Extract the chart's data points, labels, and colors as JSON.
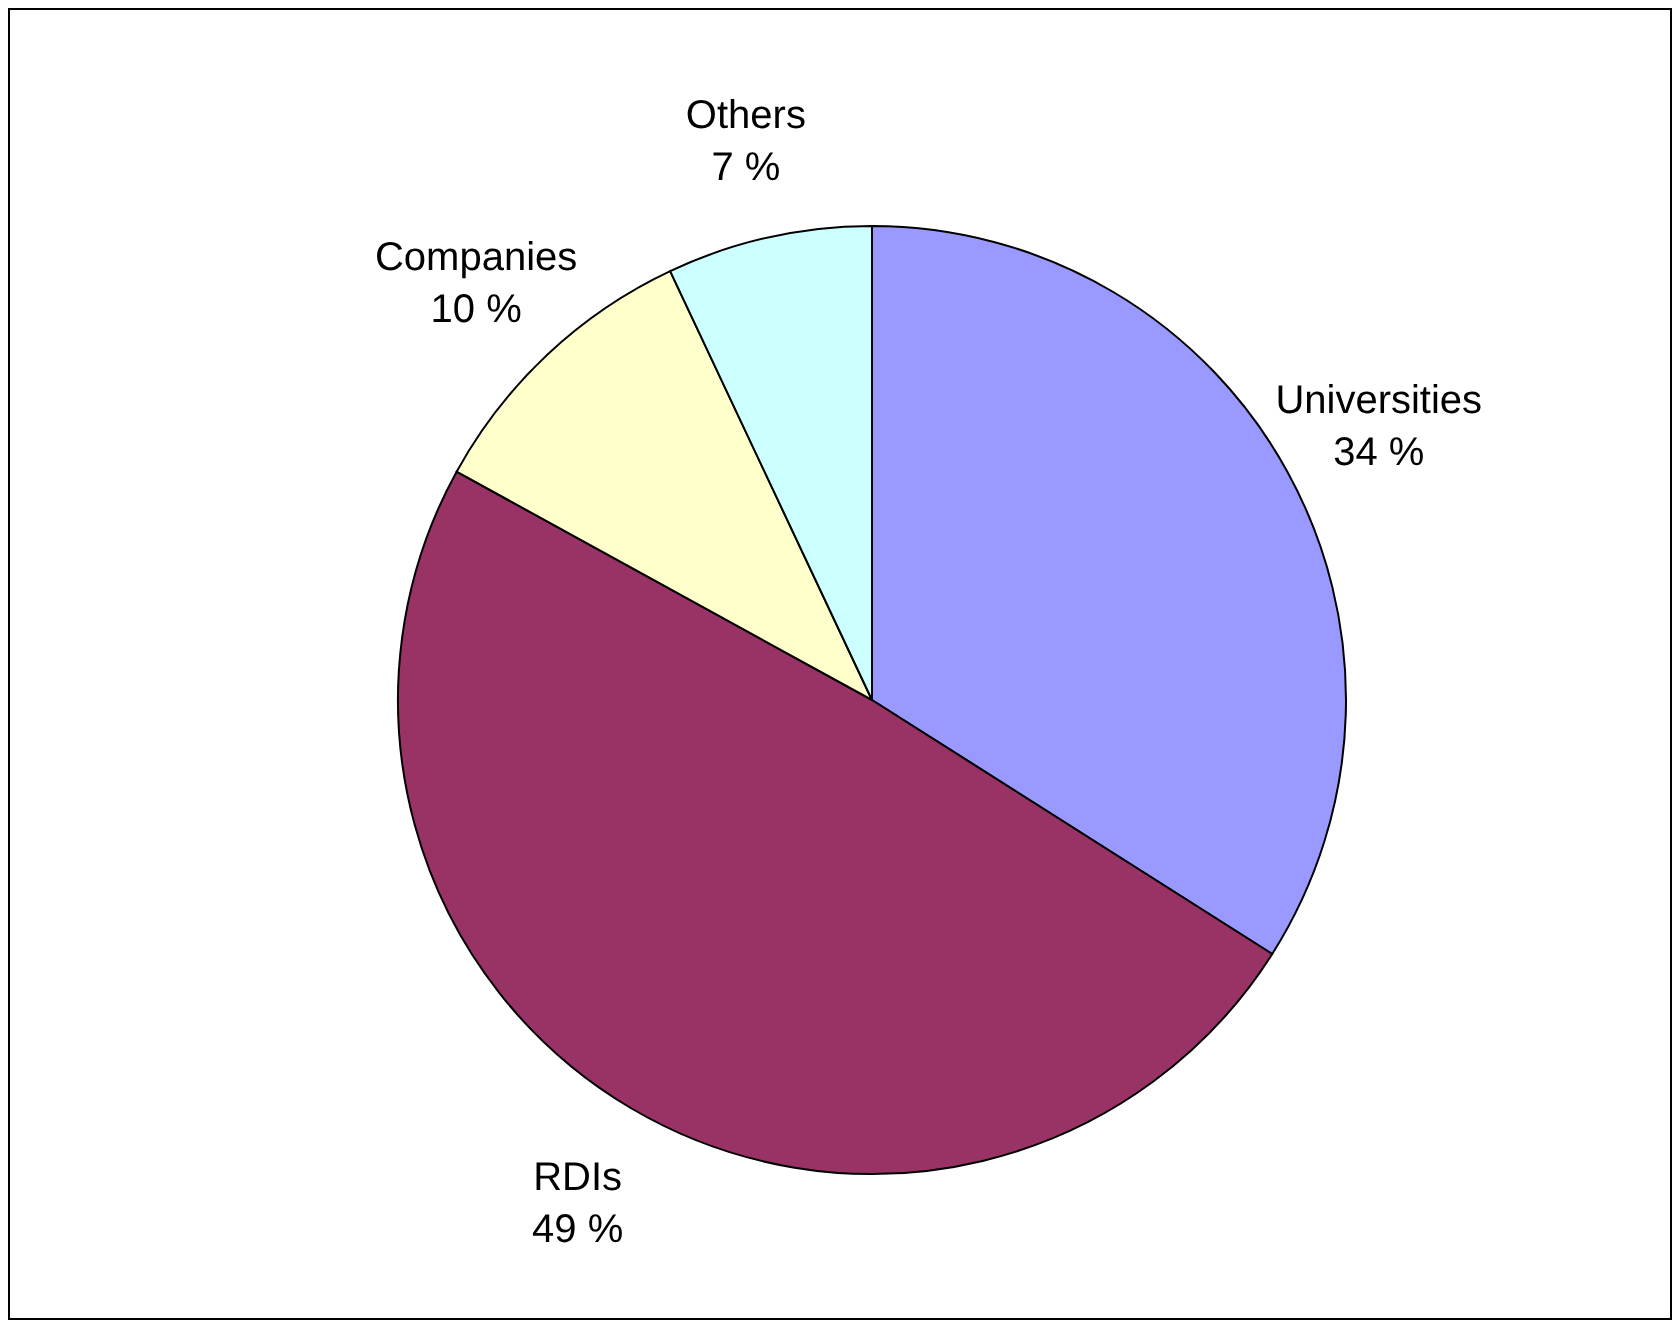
{
  "chart_data": {
    "type": "pie",
    "categories": [
      "Universities",
      "RDIs",
      "Companies",
      "Others"
    ],
    "values": [
      34,
      49,
      10,
      7
    ],
    "colors": [
      "#9999ff",
      "#993366",
      "#ffffcc",
      "#ccffff"
    ],
    "value_labels": [
      "34 %",
      "49 %",
      "10 %",
      "7 %"
    ]
  }
}
